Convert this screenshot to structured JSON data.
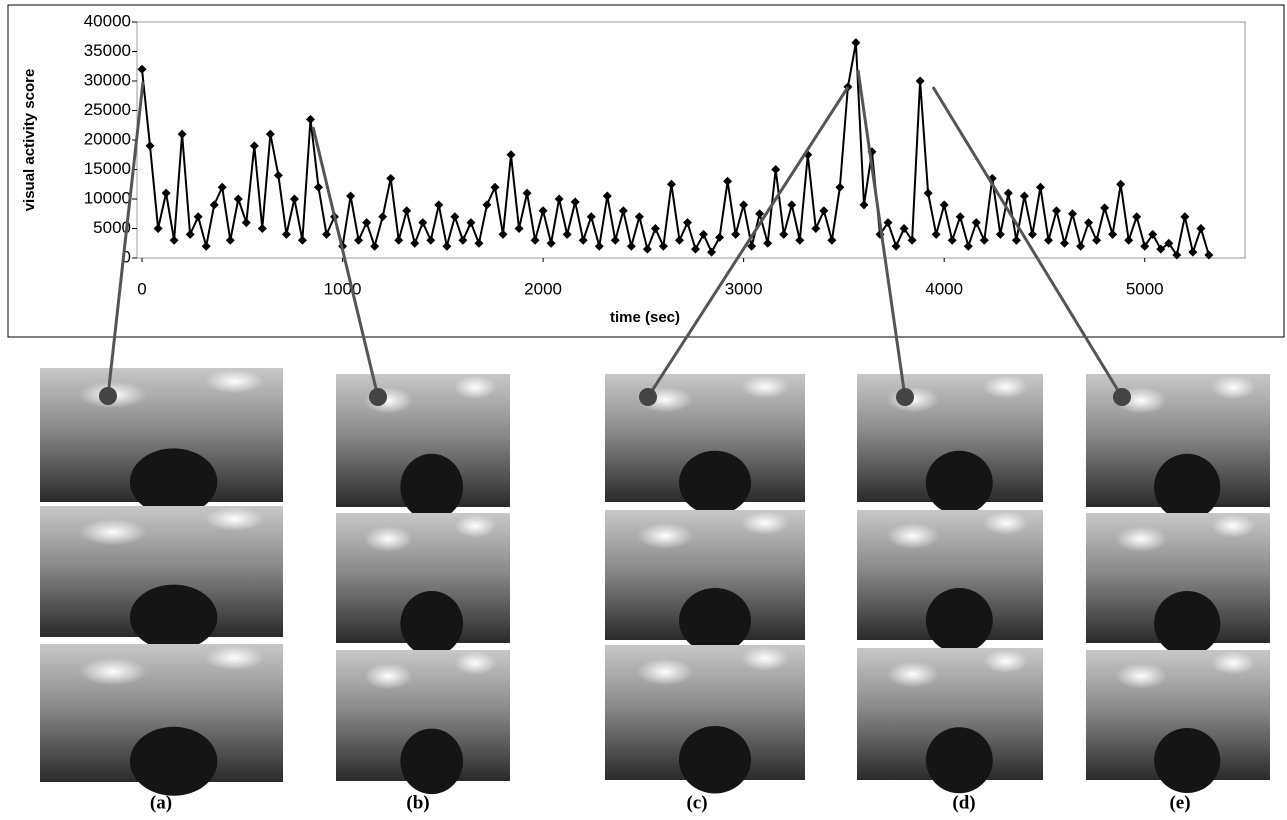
{
  "chart_data": {
    "type": "line",
    "xlabel": "time (sec)",
    "ylabel": "visual activity score",
    "x": [
      0,
      40,
      80,
      120,
      160,
      200,
      240,
      280,
      320,
      360,
      400,
      440,
      480,
      520,
      560,
      600,
      640,
      680,
      720,
      760,
      800,
      840,
      880,
      920,
      960,
      1000,
      1040,
      1080,
      1120,
      1160,
      1200,
      1240,
      1280,
      1320,
      1360,
      1400,
      1440,
      1480,
      1520,
      1560,
      1600,
      1640,
      1680,
      1720,
      1760,
      1800,
      1840,
      1880,
      1920,
      1960,
      2000,
      2040,
      2080,
      2120,
      2160,
      2200,
      2240,
      2280,
      2320,
      2360,
      2400,
      2440,
      2480,
      2520,
      2560,
      2600,
      2640,
      2680,
      2720,
      2760,
      2800,
      2840,
      2880,
      2920,
      2960,
      3000,
      3040,
      3080,
      3120,
      3160,
      3200,
      3240,
      3280,
      3320,
      3360,
      3400,
      3440,
      3480,
      3520,
      3560,
      3600,
      3640,
      3680,
      3720,
      3760,
      3800,
      3840,
      3880,
      3920,
      3960,
      4000,
      4040,
      4080,
      4120,
      4160,
      4200,
      4240,
      4280,
      4320,
      4360,
      4400,
      4440,
      4480,
      4520,
      4560,
      4600,
      4640,
      4680,
      4720,
      4760,
      4800,
      4840,
      4880,
      4920,
      4960,
      5000,
      5040,
      5080,
      5120,
      5160,
      5200,
      5240,
      5280,
      5320
    ],
    "series": [
      {
        "color": "#000000",
        "values": [
          32000,
          19000,
          5000,
          11000,
          3000,
          21000,
          4000,
          7000,
          2000,
          9000,
          12000,
          3000,
          10000,
          6000,
          19000,
          5000,
          21000,
          14000,
          4000,
          10000,
          3000,
          23500,
          12000,
          4000,
          7000,
          2000,
          10500,
          3000,
          6000,
          2000,
          7000,
          13500,
          3000,
          8000,
          2500,
          6000,
          3000,
          9000,
          2000,
          7000,
          3000,
          6000,
          2500,
          9000,
          12000,
          4000,
          17500,
          5000,
          11000,
          3000,
          8000,
          2500,
          10000,
          4000,
          9500,
          3000,
          7000,
          2000,
          10500,
          3000,
          8000,
          2000,
          7000,
          1500,
          5000,
          2000,
          12500,
          3000,
          6000,
          1500,
          4000,
          1000,
          3500,
          13000,
          4000,
          9000,
          2000,
          7500,
          2500,
          15000,
          4000,
          9000,
          3000,
          17500,
          5000,
          8000,
          3000,
          12000,
          29000,
          36500,
          9000,
          18000,
          4000,
          6000,
          2000,
          5000,
          3000,
          30000,
          11000,
          4000,
          9000,
          3000,
          7000,
          2000,
          6000,
          3000,
          13500,
          4000,
          11000,
          3000,
          10500,
          4000,
          12000,
          3000,
          8000,
          2500,
          7500,
          2000,
          6000,
          3000,
          8500,
          4000,
          12500,
          3000,
          7000,
          2000,
          4000,
          1500,
          2500,
          500,
          7000,
          1000,
          5000,
          500
        ]
      }
    ],
    "xlim": [
      -25,
      5500
    ],
    "xticks": [
      0,
      1000,
      2000,
      3000,
      4000,
      5000
    ],
    "ylim": [
      0,
      40000
    ],
    "yticks": [
      0,
      5000,
      10000,
      15000,
      20000,
      25000,
      30000,
      35000,
      40000
    ]
  },
  "panel_labels": [
    "(a)",
    "(b)",
    "(c)",
    "(d)",
    "(e)"
  ]
}
